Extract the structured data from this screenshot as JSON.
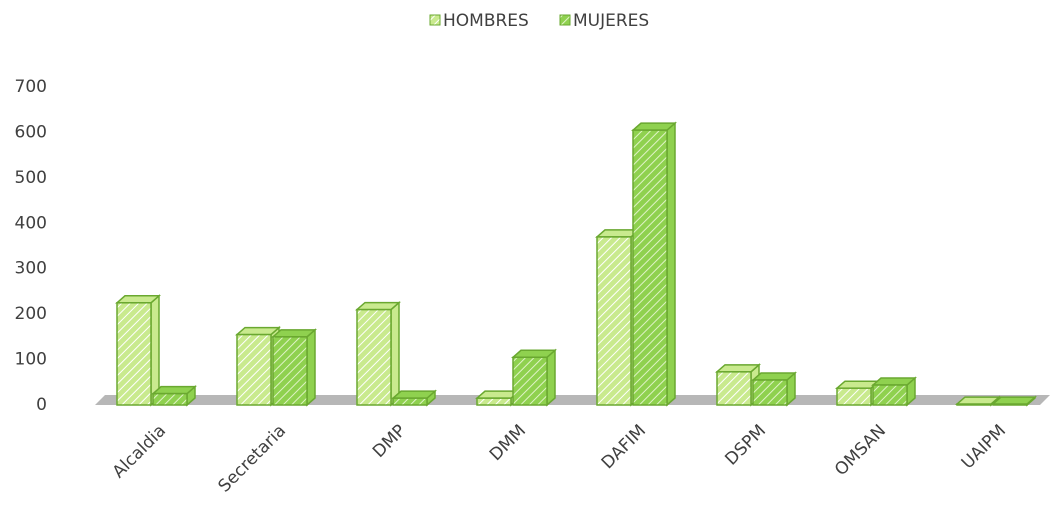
{
  "chart_data": {
    "type": "bar3d",
    "categories": [
      "Alcaldia",
      "Secretaria",
      "DMP",
      "DMM",
      "DAFIM",
      "DSPM",
      "OMSAN",
      "UAIPM"
    ],
    "series": [
      {
        "name": "HOMBRES",
        "color": "#c9ea8e",
        "values": [
          225,
          155,
          210,
          15,
          370,
          73,
          37,
          2
        ]
      },
      {
        "name": "MUJERES",
        "color": "#8fd14f",
        "values": [
          25,
          150,
          15,
          105,
          605,
          55,
          44,
          2
        ]
      }
    ],
    "ylim": [
      0,
      700
    ],
    "yticks": [
      0,
      100,
      200,
      300,
      400,
      500,
      600,
      700
    ],
    "legend": "top",
    "grid": false
  }
}
